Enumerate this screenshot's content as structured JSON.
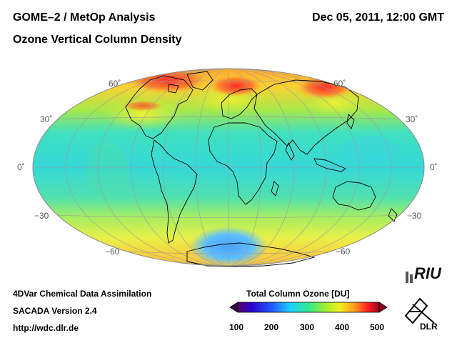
{
  "header": {
    "title_line1": "GOME–2 / MetOp Analysis",
    "title_line2": "Ozone Vertical Column Density",
    "datetime": "Dec 05, 2011, 12:00 GMT"
  },
  "map": {
    "projection": "Hammer-Aitoff",
    "lat_labels_left": [
      "60˚",
      "30˚",
      "0˚",
      "−30",
      "−60"
    ],
    "lat_labels_right": [
      "60˚",
      "30˚",
      "0˚",
      "−30",
      "−60"
    ]
  },
  "footer": {
    "line1": "4DVar Chemical Data Assimilation",
    "line2": "SACADA Version 2.4",
    "line3": "http://wdc.dlr.de"
  },
  "colorbar": {
    "title": "Total Column Ozone [DU]",
    "ticks": [
      "100",
      "200",
      "300",
      "400",
      "500"
    ],
    "min": 100,
    "max": 500
  },
  "logos": {
    "riu": "RIU",
    "dlr": "DLR"
  }
}
